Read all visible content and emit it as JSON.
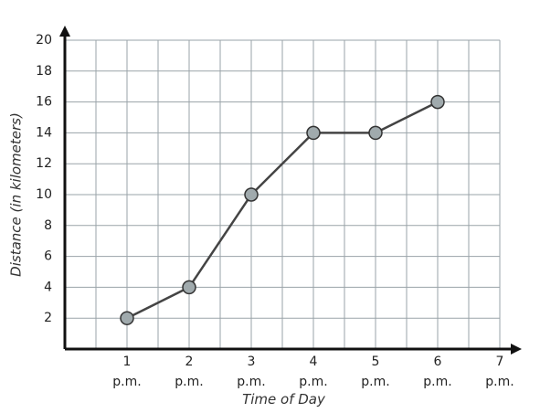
{
  "chart_data": {
    "type": "line",
    "categories": [
      "1 p.m.",
      "2 p.m.",
      "3 p.m.",
      "4 p.m.",
      "5 p.m.",
      "6 p.m.",
      "7 p.m."
    ],
    "series": [
      {
        "name": "Distance",
        "color": "#444444",
        "marker_color": "#a0aaad",
        "values": [
          2,
          4,
          10,
          14,
          14,
          16,
          null
        ]
      }
    ],
    "ylim": [
      0,
      20
    ],
    "yticks": [
      2,
      4,
      6,
      8,
      10,
      12,
      14,
      16,
      18,
      20
    ],
    "grid": true,
    "xlabel": "Time of Day",
    "ylabel": "Distance (in kilometers)"
  }
}
